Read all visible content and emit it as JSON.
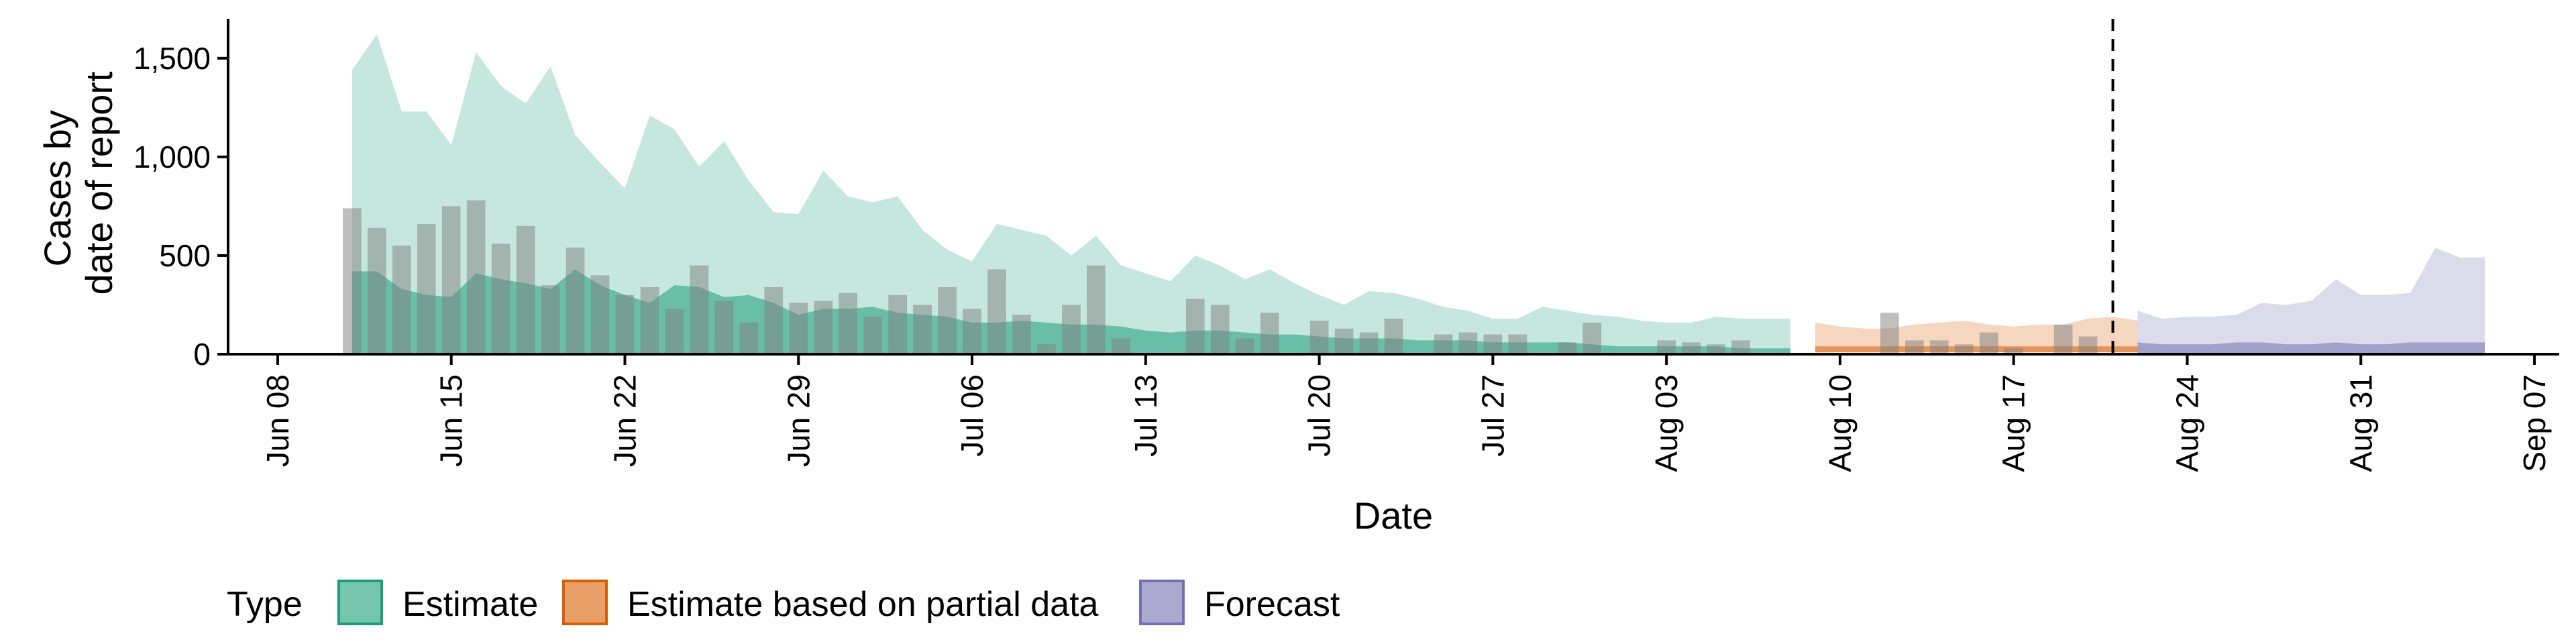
{
  "chart_data": {
    "type": "area",
    "xlabel": "Date",
    "ylabel": [
      "Cases by",
      "date of report"
    ],
    "ylim": [
      0,
      1700
    ],
    "xlim": [
      "2020-06-06",
      "2020-09-08"
    ],
    "y_ticks": [
      0,
      500,
      1000,
      1500
    ],
    "y_tick_labels": [
      "0",
      "500",
      "1,000",
      "1,500"
    ],
    "x_ticks": [
      "2020-06-08",
      "2020-06-15",
      "2020-06-22",
      "2020-06-29",
      "2020-07-06",
      "2020-07-13",
      "2020-07-20",
      "2020-07-27",
      "2020-08-03",
      "2020-08-10",
      "2020-08-17",
      "2020-08-24",
      "2020-08-31",
      "2020-09-07"
    ],
    "x_tick_labels": [
      "Jun 08",
      "Jun 15",
      "Jun 22",
      "Jun 29",
      "Jul 06",
      "Jul 13",
      "Jul 20",
      "Jul 27",
      "Aug 03",
      "Aug 10",
      "Aug 17",
      "Aug 24",
      "Aug 31",
      "Sep 07"
    ],
    "vline_date": "2020-08-21",
    "legend": {
      "title": "Type",
      "position": "bottom",
      "items": [
        "Estimate",
        "Estimate based on partial data",
        "Forecast"
      ]
    },
    "colors": {
      "estimate": "#1b9e77",
      "partial": "#d95f02",
      "forecast": "#7570b3",
      "bars": "#808080"
    },
    "grid": false,
    "reported_cases": {
      "start_date": "2020-06-11",
      "values": [
        740,
        640,
        550,
        660,
        750,
        780,
        560,
        650,
        350,
        540,
        400,
        300,
        340,
        230,
        450,
        270,
        160,
        340,
        260,
        270,
        310,
        190,
        300,
        250,
        340,
        230,
        430,
        200,
        50,
        250,
        450,
        80,
        0,
        0,
        280,
        250,
        80,
        210,
        0,
        170,
        130,
        110,
        180,
        0,
        100,
        110,
        100,
        100,
        0,
        60,
        160,
        0,
        0,
        70,
        60,
        50,
        70,
        0,
        0,
        0,
        0,
        0,
        210,
        70,
        70,
        50,
        110,
        30,
        0,
        150,
        90
      ]
    },
    "series": [
      {
        "name": "Estimate",
        "start_date": "2020-06-11",
        "upper_90": [
          1440,
          1620,
          1230,
          1230,
          1060,
          1530,
          1360,
          1270,
          1460,
          1110,
          970,
          840,
          1210,
          1140,
          950,
          1080,
          880,
          720,
          710,
          930,
          800,
          770,
          800,
          630,
          530,
          470,
          660,
          630,
          600,
          500,
          600,
          450,
          410,
          370,
          500,
          450,
          380,
          430,
          360,
          300,
          250,
          320,
          310,
          280,
          240,
          220,
          180,
          180,
          240,
          220,
          200,
          190,
          170,
          160,
          160,
          190,
          180,
          180,
          180
        ],
        "upper_50": [
          420,
          420,
          330,
          300,
          290,
          410,
          380,
          360,
          330,
          430,
          350,
          300,
          260,
          350,
          340,
          290,
          300,
          260,
          200,
          230,
          230,
          240,
          210,
          200,
          190,
          160,
          160,
          170,
          160,
          150,
          150,
          140,
          120,
          110,
          120,
          120,
          110,
          100,
          100,
          90,
          80,
          80,
          80,
          70,
          70,
          70,
          60,
          60,
          60,
          60,
          50,
          40,
          40,
          40,
          40,
          40,
          30,
          30,
          30
        ],
        "lower_50": [
          0,
          0,
          0,
          0,
          0,
          0,
          0,
          0,
          0,
          0,
          0,
          0,
          0,
          0,
          0,
          0,
          0,
          0,
          0,
          0,
          0,
          0,
          0,
          0,
          0,
          0,
          0,
          0,
          0,
          0,
          0,
          0,
          0,
          0,
          0,
          0,
          0,
          0,
          0,
          0,
          0,
          0,
          0,
          0,
          0,
          0,
          0,
          0,
          0,
          0,
          0,
          0,
          0,
          0,
          0,
          0,
          0,
          0,
          0
        ]
      },
      {
        "name": "Estimate based on partial data",
        "start_date": "2020-08-09",
        "upper_90": [
          160,
          140,
          130,
          130,
          150,
          160,
          170,
          150,
          140,
          150,
          150,
          180,
          190,
          170
        ],
        "upper_50": [
          40,
          40,
          40,
          40,
          40,
          40,
          40,
          40,
          40,
          40,
          40,
          40,
          40,
          40
        ],
        "lower_50": [
          10,
          10,
          10,
          10,
          10,
          10,
          10,
          10,
          10,
          10,
          10,
          10,
          10,
          10
        ]
      },
      {
        "name": "Forecast",
        "start_date": "2020-08-22",
        "upper_90": [
          220,
          180,
          190,
          190,
          200,
          260,
          250,
          270,
          380,
          300,
          300,
          310,
          540,
          490,
          490
        ],
        "upper_50": [
          60,
          50,
          50,
          50,
          60,
          60,
          50,
          50,
          60,
          50,
          50,
          60,
          60,
          60,
          60
        ],
        "lower_50": [
          0,
          0,
          0,
          0,
          0,
          0,
          0,
          0,
          0,
          0,
          0,
          0,
          0,
          0,
          0
        ]
      }
    ]
  }
}
